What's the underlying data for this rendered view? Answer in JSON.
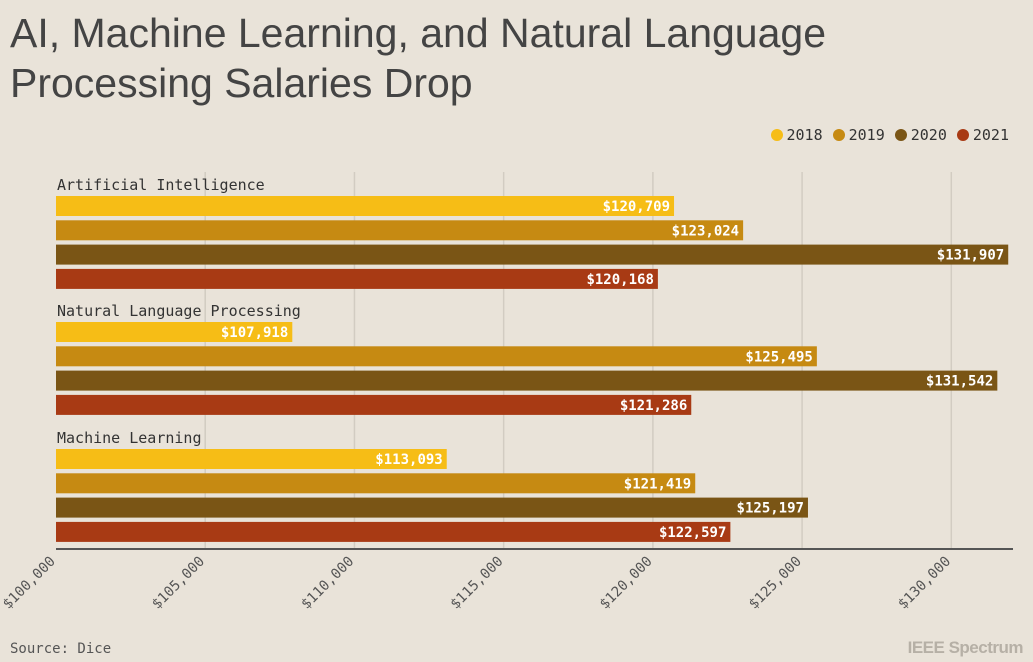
{
  "chart_data": {
    "type": "bar",
    "orientation": "horizontal",
    "title": "AI, Machine Learning, and Natural Language Processing Salaries Drop",
    "categories": [
      "Artificial Intelligence",
      "Natural Language Processing",
      "Machine Learning"
    ],
    "series": [
      {
        "name": "2018",
        "color": "#f6bd16",
        "values": [
          120709,
          107918,
          113093
        ],
        "labels": [
          "$120,709",
          "$107,918",
          "$113,093"
        ]
      },
      {
        "name": "2019",
        "color": "#c68a12",
        "values": [
          123024,
          125495,
          121419
        ],
        "labels": [
          "$123,024",
          "$125,495",
          "$121,419"
        ]
      },
      {
        "name": "2020",
        "color": "#7a5515",
        "values": [
          131907,
          131542,
          125197
        ],
        "labels": [
          "$131,907",
          "$131,542",
          "$125,197"
        ]
      },
      {
        "name": "2021",
        "color": "#a83a14",
        "values": [
          120168,
          121286,
          122597
        ],
        "labels": [
          "$120,168",
          "$121,286",
          "$122,597"
        ]
      }
    ],
    "xlim": [
      100000,
      132000
    ],
    "xticks": [
      100000,
      105000,
      110000,
      115000,
      120000,
      125000,
      130000
    ],
    "xtick_labels": [
      "$100,000",
      "$105,000",
      "$110,000",
      "$115,000",
      "$120,000",
      "$125,000",
      "$130,000"
    ],
    "grid": true,
    "legend_position": "top-right"
  },
  "source": "Source: Dice",
  "brand": "IEEE Spectrum"
}
